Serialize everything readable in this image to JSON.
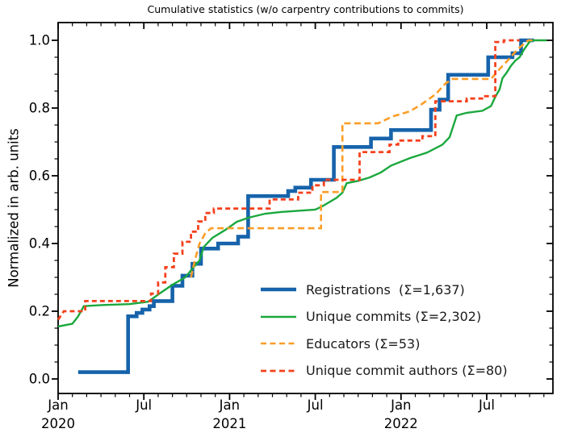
{
  "chart_data": {
    "type": "line",
    "title": "Cumulative statistics (w/o carpentry contributions to commits)",
    "ylabel": "Normalized in arb. units",
    "xlabel": "",
    "grid": false,
    "legend_position": "lower right inside plot, no frame",
    "x_axis": {
      "unit": "months since Jan 2020",
      "range": [
        0,
        34.63
      ],
      "major_ticks": [
        {
          "t": 0,
          "label": "Jan",
          "year": "2020"
        },
        {
          "t": 6,
          "label": "Jul",
          "year": ""
        },
        {
          "t": 12,
          "label": "Jan",
          "year": "2021"
        },
        {
          "t": 18,
          "label": "Jul",
          "year": ""
        },
        {
          "t": 24,
          "label": "Jan",
          "year": "2022"
        },
        {
          "t": 30,
          "label": "Jul",
          "year": ""
        }
      ],
      "minor_tick_every_months": 1
    },
    "y_axis": {
      "range": [
        -0.043,
        1.052
      ],
      "major_ticks": [
        {
          "v": 0.0,
          "label": "0.0"
        },
        {
          "v": 0.2,
          "label": "0.2"
        },
        {
          "v": 0.4,
          "label": "0.4"
        },
        {
          "v": 0.6,
          "label": "0.6"
        },
        {
          "v": 0.8,
          "label": "0.8"
        },
        {
          "v": 1.0,
          "label": "1.0"
        }
      ],
      "minor_tick_every": 0.05
    },
    "series": [
      {
        "name": "Registrations",
        "sigma": "1,637",
        "legend_label": "Registrations  (Σ=1,637)",
        "color": "#1663ab",
        "style": "solid",
        "width": 4.6,
        "steps": true,
        "points": [
          [
            1.4,
            0.02
          ],
          [
            4.9,
            0.185
          ],
          [
            5.5,
            0.195
          ],
          [
            5.9,
            0.205
          ],
          [
            6.4,
            0.215
          ],
          [
            6.7,
            0.23
          ],
          [
            8.0,
            0.275
          ],
          [
            8.7,
            0.305
          ],
          [
            9.4,
            0.34
          ],
          [
            10.0,
            0.385
          ],
          [
            11.2,
            0.4
          ],
          [
            12.6,
            0.42
          ],
          [
            13.3,
            0.54
          ],
          [
            16.1,
            0.555
          ],
          [
            16.6,
            0.565
          ],
          [
            17.7,
            0.588
          ],
          [
            19.3,
            0.685
          ],
          [
            21.9,
            0.71
          ],
          [
            23.3,
            0.735
          ],
          [
            26.1,
            0.795
          ],
          [
            26.7,
            0.825
          ],
          [
            27.3,
            0.898
          ],
          [
            30.1,
            0.95
          ],
          [
            31.8,
            0.962
          ],
          [
            32.4,
            1.0
          ],
          [
            33.3,
            1.0
          ]
        ]
      },
      {
        "name": "Unique commits",
        "sigma": "2,302",
        "legend_label": "Unique commits (Σ=2,302)",
        "color": "#1aa83d",
        "style": "solid",
        "width": 2.4,
        "steps": false,
        "points": [
          [
            0,
            0.155
          ],
          [
            1.0,
            0.163
          ],
          [
            1.4,
            0.185
          ],
          [
            1.8,
            0.215
          ],
          [
            3.0,
            0.218
          ],
          [
            5.0,
            0.221
          ],
          [
            6.3,
            0.228
          ],
          [
            7.2,
            0.255
          ],
          [
            8.0,
            0.278
          ],
          [
            8.9,
            0.3
          ],
          [
            9.4,
            0.326
          ],
          [
            9.9,
            0.35
          ],
          [
            10.2,
            0.39
          ],
          [
            10.8,
            0.417
          ],
          [
            11.7,
            0.44
          ],
          [
            12.5,
            0.464
          ],
          [
            13.3,
            0.476
          ],
          [
            14.5,
            0.488
          ],
          [
            15.6,
            0.493
          ],
          [
            18.0,
            0.5
          ],
          [
            18.5,
            0.51
          ],
          [
            19.5,
            0.535
          ],
          [
            19.9,
            0.55
          ],
          [
            20.2,
            0.578
          ],
          [
            21.0,
            0.585
          ],
          [
            21.8,
            0.595
          ],
          [
            22.6,
            0.61
          ],
          [
            23.3,
            0.63
          ],
          [
            24.6,
            0.652
          ],
          [
            25.8,
            0.668
          ],
          [
            26.9,
            0.692
          ],
          [
            27.4,
            0.714
          ],
          [
            27.9,
            0.778
          ],
          [
            28.6,
            0.786
          ],
          [
            29.7,
            0.792
          ],
          [
            30.3,
            0.806
          ],
          [
            30.6,
            0.833
          ],
          [
            30.9,
            0.855
          ],
          [
            31.1,
            0.888
          ],
          [
            31.4,
            0.905
          ],
          [
            31.7,
            0.925
          ],
          [
            32.0,
            0.94
          ],
          [
            32.3,
            0.95
          ],
          [
            32.6,
            0.972
          ],
          [
            32.9,
            0.99
          ],
          [
            33.1,
            1.0
          ],
          [
            34.2,
            1.0
          ]
        ]
      },
      {
        "name": "Educators",
        "sigma": "53",
        "legend_label": "Educators (Σ=53)",
        "color": "#fc9d27",
        "style": "dashed",
        "dash": [
          8,
          4.5
        ],
        "width": 2.6,
        "steps": false,
        "points": [
          [
            9.3,
            0.3
          ],
          [
            9.6,
            0.355
          ],
          [
            9.9,
            0.4
          ],
          [
            10.3,
            0.43
          ],
          [
            10.7,
            0.445
          ],
          [
            18.4,
            0.445
          ],
          [
            18.4,
            0.552
          ],
          [
            19.9,
            0.552
          ],
          [
            19.9,
            0.755
          ],
          [
            22.4,
            0.755
          ],
          [
            23.4,
            0.775
          ],
          [
            24.6,
            0.79
          ],
          [
            25.4,
            0.81
          ],
          [
            26.4,
            0.84
          ],
          [
            27.1,
            0.872
          ],
          [
            27.6,
            0.886
          ],
          [
            30.3,
            0.886
          ],
          [
            30.9,
            0.915
          ],
          [
            31.5,
            0.942
          ],
          [
            32.2,
            0.975
          ],
          [
            32.9,
            1.0
          ],
          [
            33.3,
            1.0
          ]
        ]
      },
      {
        "name": "Unique commit authors",
        "sigma": "80",
        "legend_label": "Unique commit authors (Σ=80)",
        "color": "#f5411d",
        "style": "dashed",
        "dash": [
          6,
          4
        ],
        "width": 2.8,
        "steps": false,
        "points": [
          [
            0,
            0.175
          ],
          [
            0.4,
            0.2
          ],
          [
            1.9,
            0.2
          ],
          [
            1.9,
            0.23
          ],
          [
            6.5,
            0.23
          ],
          [
            6.5,
            0.252
          ],
          [
            7.0,
            0.252
          ],
          [
            7.0,
            0.285
          ],
          [
            7.5,
            0.285
          ],
          [
            7.5,
            0.33
          ],
          [
            8.1,
            0.33
          ],
          [
            8.1,
            0.37
          ],
          [
            8.7,
            0.37
          ],
          [
            8.7,
            0.405
          ],
          [
            9.3,
            0.405
          ],
          [
            9.3,
            0.435
          ],
          [
            9.8,
            0.435
          ],
          [
            9.8,
            0.465
          ],
          [
            10.3,
            0.465
          ],
          [
            10.3,
            0.49
          ],
          [
            10.9,
            0.49
          ],
          [
            10.9,
            0.503
          ],
          [
            14.8,
            0.503
          ],
          [
            14.8,
            0.53
          ],
          [
            16.8,
            0.53
          ],
          [
            16.8,
            0.55
          ],
          [
            17.8,
            0.55
          ],
          [
            17.8,
            0.572
          ],
          [
            18.6,
            0.572
          ],
          [
            18.6,
            0.588
          ],
          [
            21.1,
            0.588
          ],
          [
            21.1,
            0.67
          ],
          [
            23.2,
            0.67
          ],
          [
            23.2,
            0.692
          ],
          [
            23.8,
            0.692
          ],
          [
            23.8,
            0.704
          ],
          [
            25.5,
            0.704
          ],
          [
            25.5,
            0.717
          ],
          [
            26.4,
            0.717
          ],
          [
            26.4,
            0.82
          ],
          [
            28.6,
            0.82
          ],
          [
            28.6,
            0.828
          ],
          [
            29.8,
            0.828
          ],
          [
            29.8,
            0.835
          ],
          [
            30.6,
            0.835
          ],
          [
            30.6,
            0.995
          ],
          [
            31.2,
            0.995
          ],
          [
            31.2,
            1.0
          ],
          [
            32.3,
            1.0
          ]
        ]
      }
    ]
  }
}
